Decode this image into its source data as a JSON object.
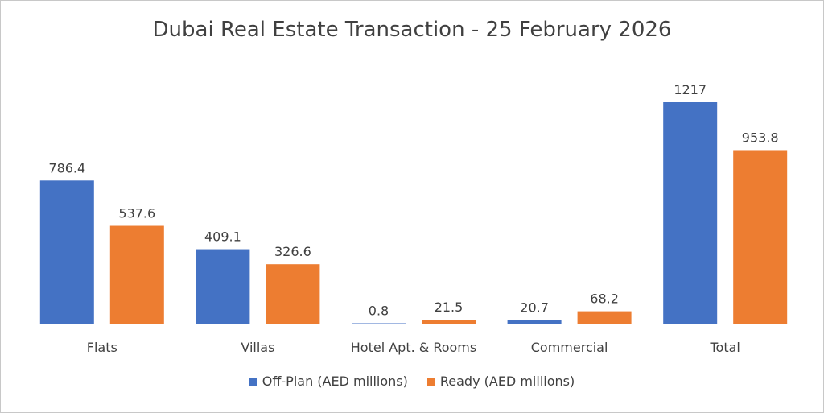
{
  "chart_data": {
    "type": "bar",
    "title": "Dubai Real Estate Transaction - 25 February 2026",
    "categories": [
      "Flats",
      "Villas",
      "Hotel Apt. & Rooms",
      "Commercial",
      "Total"
    ],
    "series": [
      {
        "name": "Off-Plan (AED millions)",
        "color": "#4472C4",
        "values": [
          786.4,
          409.1,
          0.8,
          20.7,
          1217
        ],
        "labels": [
          "786.4",
          "409.1",
          "0.8",
          "20.7",
          "1217"
        ]
      },
      {
        "name": "Ready (AED millions)",
        "color": "#ED7D31",
        "values": [
          537.6,
          326.6,
          21.5,
          68.2,
          953.8
        ],
        "labels": [
          "537.6",
          "326.6",
          "21.5",
          "68.2",
          "953.8"
        ]
      }
    ],
    "ylim": [
      0,
      1217
    ],
    "grid": false,
    "legend_position": "bottom"
  }
}
